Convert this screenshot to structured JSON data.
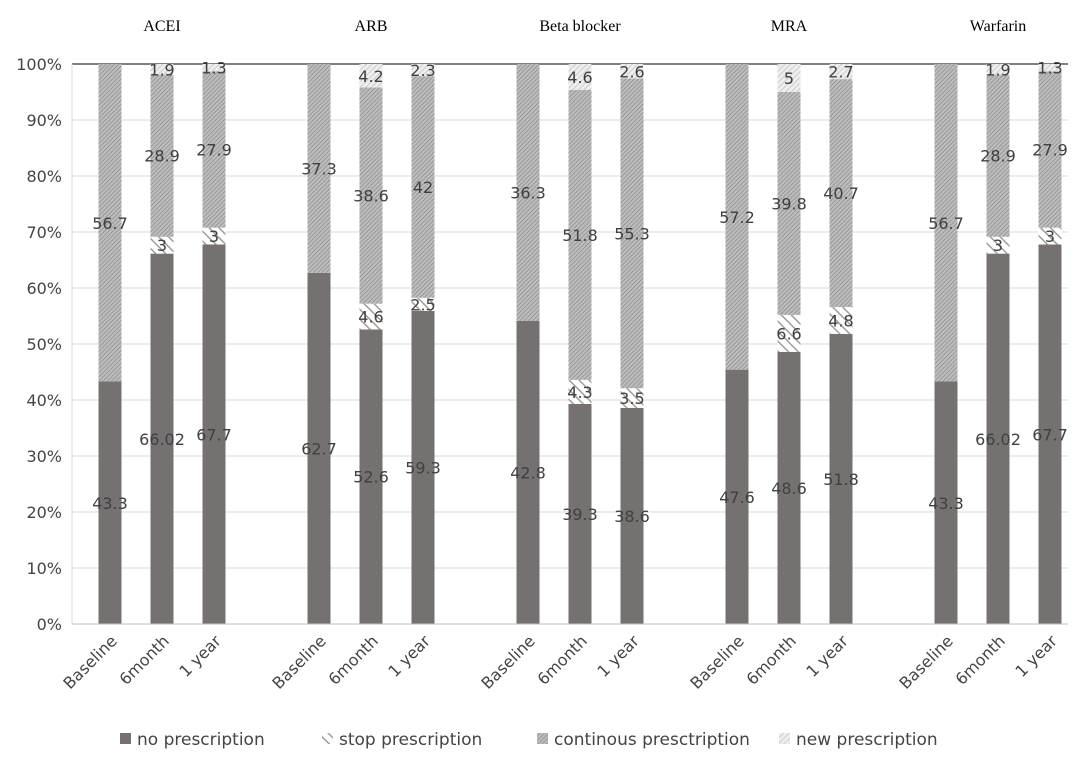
{
  "chart_data": {
    "type": "bar",
    "stacked": true,
    "percent": true,
    "ylim": [
      0,
      100
    ],
    "yticks": [
      "0%",
      "10%",
      "20%",
      "30%",
      "40%",
      "50%",
      "60%",
      "70%",
      "80%",
      "90%",
      "100%"
    ],
    "grid": true,
    "legend_position": "bottom",
    "legend": [
      {
        "name": "no prescription",
        "key": "no",
        "color": "#767171",
        "pattern": "solid"
      },
      {
        "name": "stop prescription",
        "key": "stop",
        "color": "#c8c8c8",
        "pattern": "wide-diagonal"
      },
      {
        "name": "continous presctription",
        "key": "cont",
        "color": "#a6a6a6",
        "pattern": "dense-diagonal"
      },
      {
        "name": "new prescription",
        "key": "new",
        "color": "#d9d9d9",
        "pattern": "light-diagonal"
      }
    ],
    "categories": [
      "Baseline",
      "6month",
      "1 year"
    ],
    "groups": [
      {
        "title": "ACEI",
        "bars": [
          {
            "category": "Baseline",
            "no": 43.3,
            "stop": null,
            "cont": 56.7,
            "new": null
          },
          {
            "category": "6month",
            "no": 66.02,
            "stop": 3,
            "cont": 28.9,
            "new": 1.9
          },
          {
            "category": "1 year",
            "no": 67.7,
            "stop": 3,
            "cont": 27.9,
            "new": 1.3
          }
        ]
      },
      {
        "title": "ARB",
        "bars": [
          {
            "category": "Baseline",
            "no": 62.7,
            "stop": null,
            "cont": 37.3,
            "new": null
          },
          {
            "category": "6month",
            "no": 52.6,
            "stop": 4.6,
            "cont": 38.6,
            "new": 4.2
          },
          {
            "category": "1 year",
            "no": 59.3,
            "stop": 2.5,
            "cont": 42,
            "new": 2.3
          }
        ]
      },
      {
        "title": "Beta blocker",
        "bars": [
          {
            "category": "Baseline",
            "no": 42.8,
            "stop": null,
            "cont": 36.3,
            "new": null
          },
          {
            "category": "6month",
            "no": 39.3,
            "stop": 4.3,
            "cont": 51.8,
            "new": 4.6
          },
          {
            "category": "1 year",
            "no": 38.6,
            "stop": 3.5,
            "cont": 55.3,
            "new": 2.6
          }
        ]
      },
      {
        "title": "MRA",
        "bars": [
          {
            "category": "Baseline",
            "no": 47.6,
            "stop": null,
            "cont": 57.2,
            "new": null
          },
          {
            "category": "6month",
            "no": 48.6,
            "stop": 6.6,
            "cont": 39.8,
            "new": 5
          },
          {
            "category": "1 year",
            "no": 51.8,
            "stop": 4.8,
            "cont": 40.7,
            "new": 2.7
          }
        ]
      },
      {
        "title": "Warfarin",
        "bars": [
          {
            "category": "Baseline",
            "no": 43.3,
            "stop": null,
            "cont": 56.7,
            "new": null
          },
          {
            "category": "6month",
            "no": 66.02,
            "stop": 3,
            "cont": 28.9,
            "new": 1.9
          },
          {
            "category": "1 year",
            "no": 67.7,
            "stop": 3,
            "cont": 27.9,
            "new": 1.3
          }
        ]
      }
    ]
  }
}
